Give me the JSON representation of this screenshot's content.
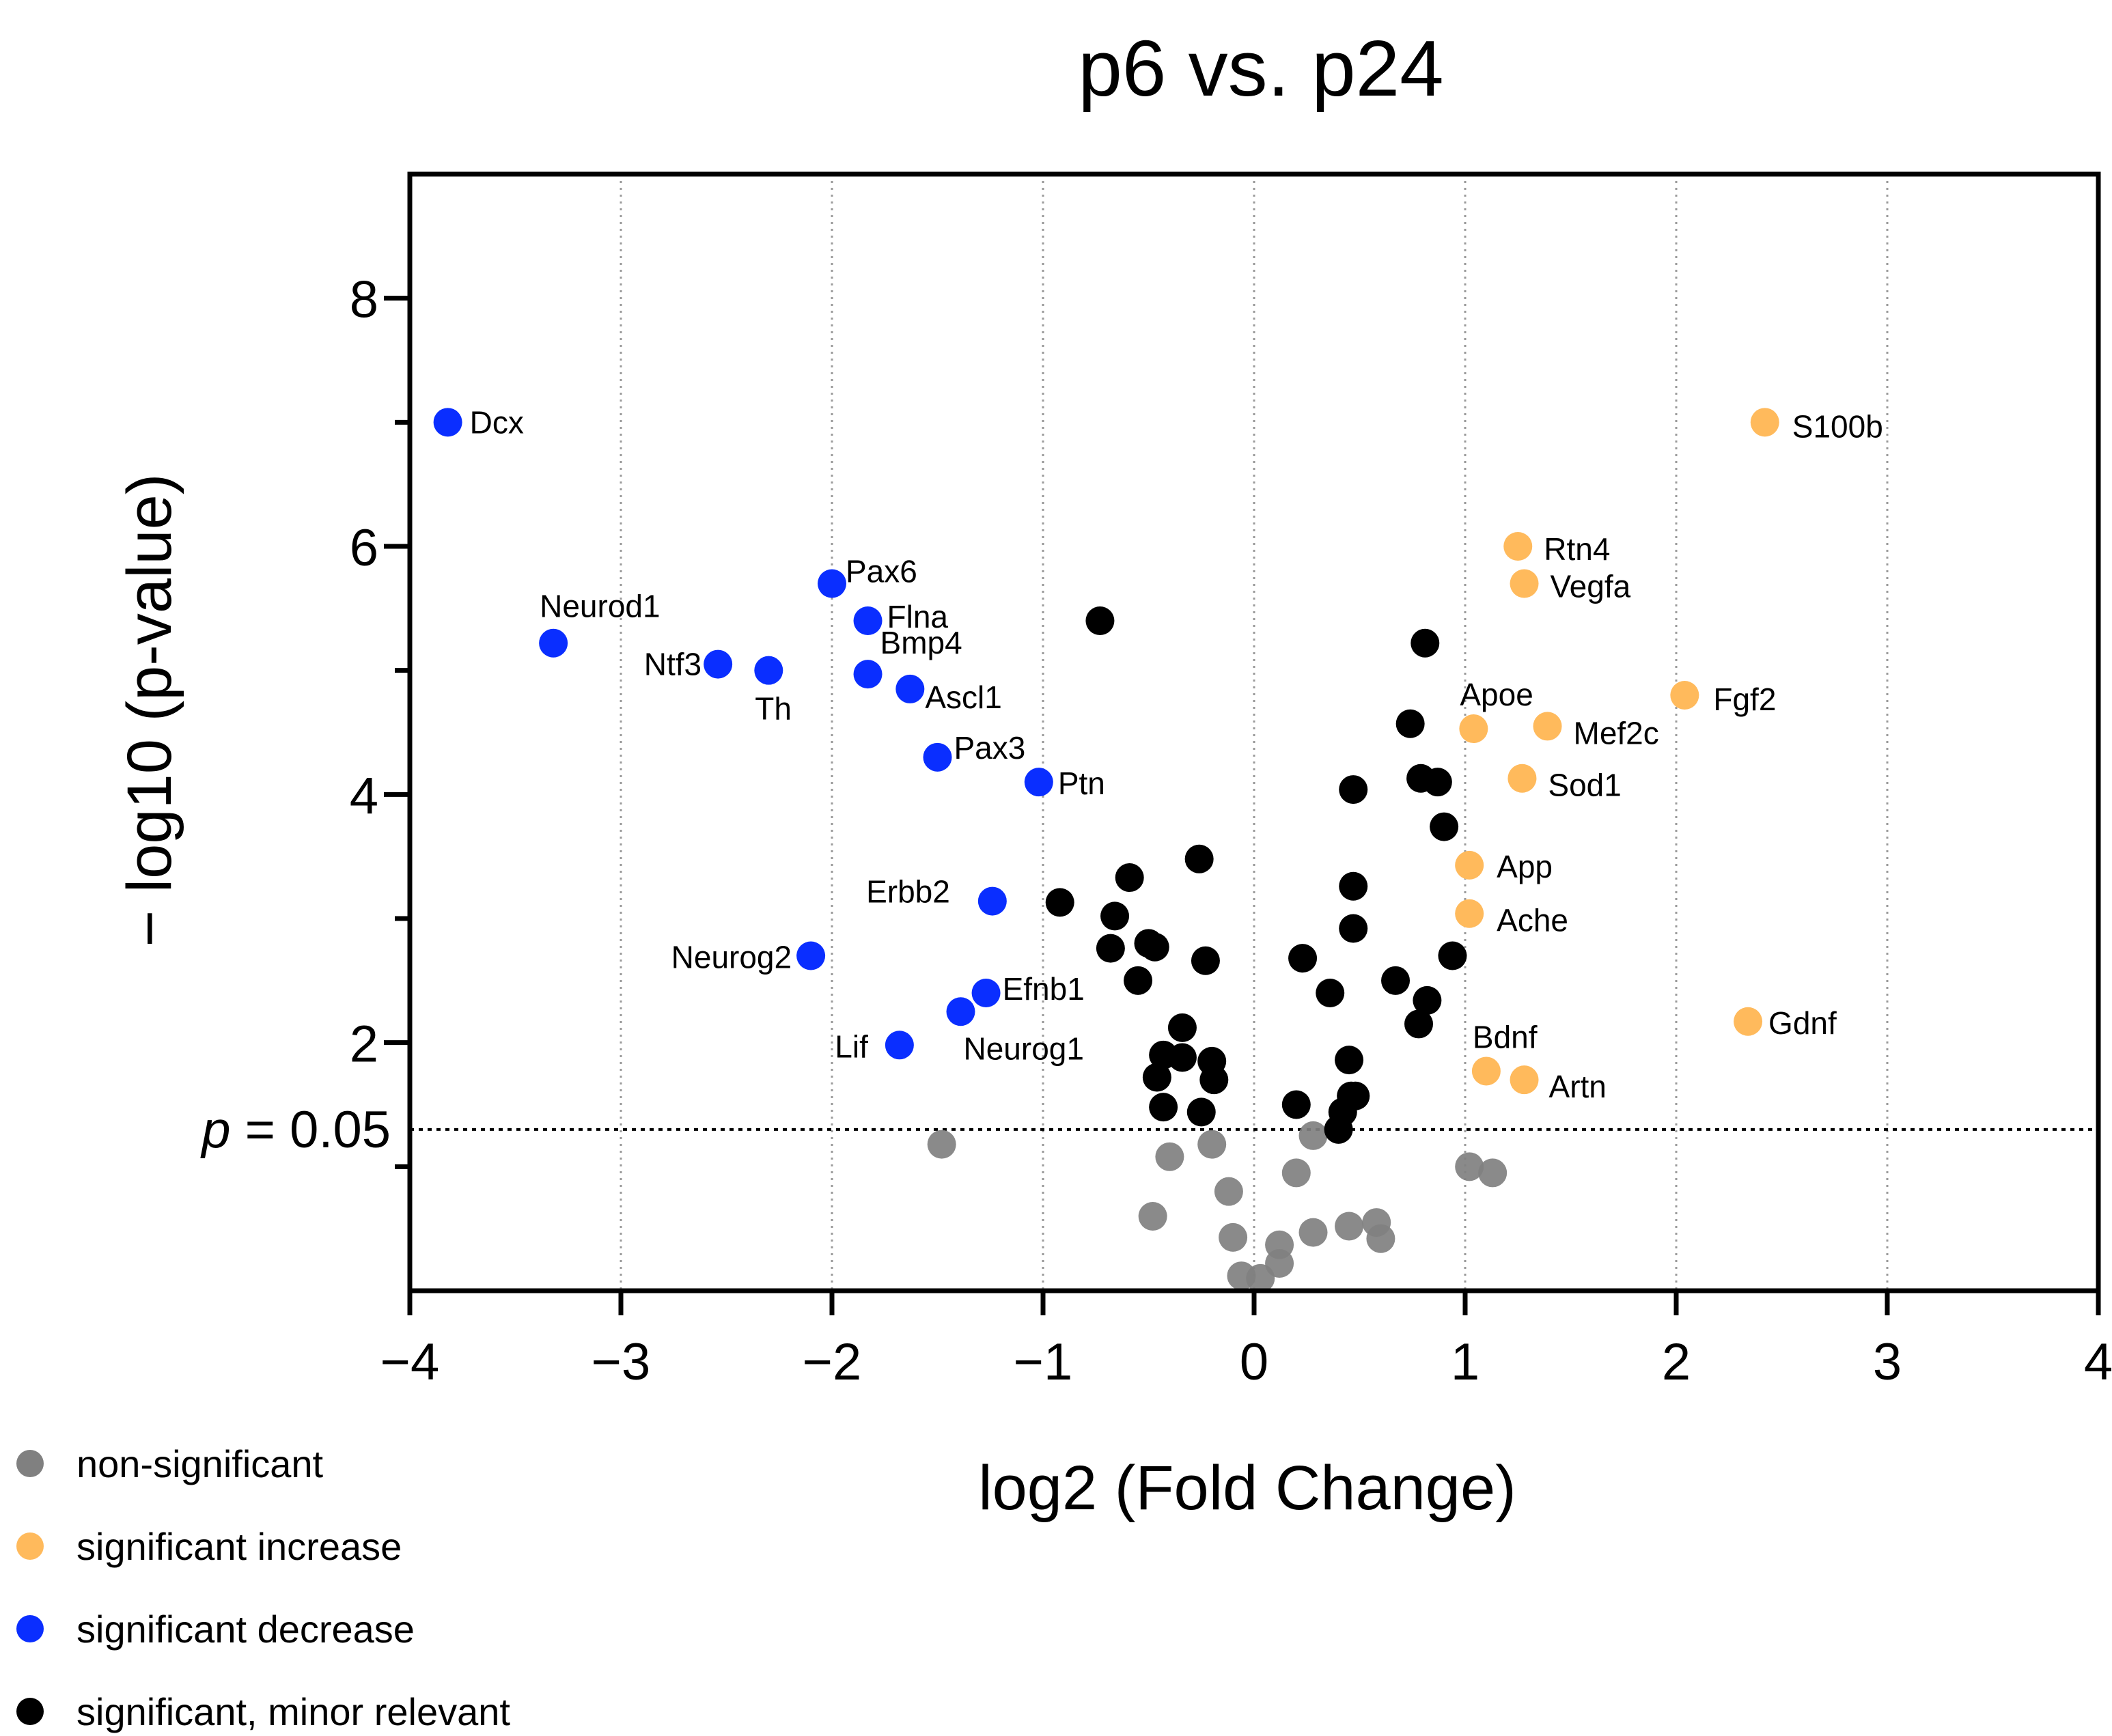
{
  "chart_data": {
    "type": "scatter",
    "title": "p6 vs. p24",
    "xlabel": "log2 (Fold Change)",
    "ylabel": "− log10 (p-value)",
    "xlim": [
      -4,
      4
    ],
    "ylim": [
      0,
      9
    ],
    "x_ticks": [
      -4,
      -3,
      -2,
      -1,
      0,
      1,
      2,
      3,
      4
    ],
    "x_tick_labels": [
      "−4",
      "−3",
      "−2",
      "−1",
      "0",
      "1",
      "2",
      "3",
      "4"
    ],
    "y_ticks": [
      2,
      4,
      6,
      8
    ],
    "y_tick_labels": [
      "2",
      "4",
      "6",
      "8"
    ],
    "grid": "vertical-dotted",
    "threshold": {
      "y": 1.3,
      "label_italic": "p",
      "label_rest": " = 0.05"
    },
    "legend_position": "bottom-left",
    "series": [
      {
        "name": "non-significant",
        "color": "#808080",
        "points": [
          {
            "x": -1.48,
            "y": 1.18
          },
          {
            "x": -0.4,
            "y": 1.08
          },
          {
            "x": -0.2,
            "y": 1.18
          },
          {
            "x": 0.28,
            "y": 1.25
          },
          {
            "x": 0.2,
            "y": 0.95
          },
          {
            "x": -0.12,
            "y": 0.8
          },
          {
            "x": -0.48,
            "y": 0.6
          },
          {
            "x": -0.1,
            "y": 0.43
          },
          {
            "x": 0.28,
            "y": 0.47
          },
          {
            "x": 0.12,
            "y": 0.37
          },
          {
            "x": 0.12,
            "y": 0.22
          },
          {
            "x": 0.45,
            "y": 0.52
          },
          {
            "x": 0.58,
            "y": 0.55
          },
          {
            "x": 0.6,
            "y": 0.42
          },
          {
            "x": -0.06,
            "y": 0.12
          },
          {
            "x": 0.03,
            "y": 0.1
          },
          {
            "x": 1.02,
            "y": 1.0
          },
          {
            "x": 1.13,
            "y": 0.95
          }
        ]
      },
      {
        "name": "significant increase",
        "color": "#FFBA5C",
        "points": [
          {
            "x": 2.42,
            "y": 7.0,
            "label": "S100b"
          },
          {
            "x": 1.25,
            "y": 6.0,
            "label": "Rtn4"
          },
          {
            "x": 1.28,
            "y": 5.7,
            "label": "Vegfa"
          },
          {
            "x": 2.04,
            "y": 4.8,
            "label": "Fgf2"
          },
          {
            "x": 1.04,
            "y": 4.53,
            "label": "Apoe"
          },
          {
            "x": 1.39,
            "y": 4.55,
            "label": "Mef2c"
          },
          {
            "x": 1.27,
            "y": 4.13,
            "label": "Sod1"
          },
          {
            "x": 1.02,
            "y": 3.43,
            "label": "App"
          },
          {
            "x": 1.02,
            "y": 3.04,
            "label": "Ache"
          },
          {
            "x": 2.34,
            "y": 2.17,
            "label": "Gdnf"
          },
          {
            "x": 1.1,
            "y": 1.77,
            "label": "Bdnf"
          },
          {
            "x": 1.28,
            "y": 1.7,
            "label": "Artn"
          }
        ]
      },
      {
        "name": "significant decrease",
        "color": "#0A2EFF",
        "points": [
          {
            "x": -3.82,
            "y": 7.0,
            "label": "Dcx"
          },
          {
            "x": -3.32,
            "y": 5.22,
            "label": "Neurod1"
          },
          {
            "x": -2.54,
            "y": 5.05,
            "label": "Ntf3"
          },
          {
            "x": -2.3,
            "y": 5.0,
            "label": "Th"
          },
          {
            "x": -2.0,
            "y": 5.7,
            "label": "Pax6"
          },
          {
            "x": -1.83,
            "y": 5.4,
            "label": "Flna"
          },
          {
            "x": -1.83,
            "y": 4.97,
            "label": "Bmp4"
          },
          {
            "x": -1.63,
            "y": 4.85,
            "label": "Ascl1"
          },
          {
            "x": -1.5,
            "y": 4.3,
            "label": "Pax3"
          },
          {
            "x": -1.02,
            "y": 4.1,
            "label": "Ptn"
          },
          {
            "x": -1.24,
            "y": 3.14,
            "label": "Erbb2"
          },
          {
            "x": -2.1,
            "y": 2.7,
            "label": "Neurog2"
          },
          {
            "x": -1.27,
            "y": 2.4,
            "label": "Efnb1"
          },
          {
            "x": -1.39,
            "y": 2.25,
            "label": "Neurog1"
          },
          {
            "x": -1.68,
            "y": 1.98,
            "label": "Lif"
          }
        ]
      },
      {
        "name": "significant, minor relevant",
        "color": "#000000",
        "points": [
          {
            "x": -0.73,
            "y": 5.4
          },
          {
            "x": 0.81,
            "y": 5.22
          },
          {
            "x": 0.74,
            "y": 4.57
          },
          {
            "x": 0.47,
            "y": 4.04
          },
          {
            "x": 0.79,
            "y": 4.13
          },
          {
            "x": 0.87,
            "y": 4.1
          },
          {
            "x": 0.9,
            "y": 3.74
          },
          {
            "x": -0.26,
            "y": 3.48
          },
          {
            "x": -0.59,
            "y": 3.33
          },
          {
            "x": -0.92,
            "y": 3.13
          },
          {
            "x": -0.66,
            "y": 3.02
          },
          {
            "x": -0.5,
            "y": 2.8
          },
          {
            "x": -0.47,
            "y": 2.77
          },
          {
            "x": -0.68,
            "y": 2.76
          },
          {
            "x": -0.23,
            "y": 2.66
          },
          {
            "x": -0.55,
            "y": 2.5
          },
          {
            "x": 0.47,
            "y": 3.26
          },
          {
            "x": 0.47,
            "y": 2.92
          },
          {
            "x": 0.23,
            "y": 2.68
          },
          {
            "x": 0.94,
            "y": 2.7
          },
          {
            "x": 0.67,
            "y": 2.5
          },
          {
            "x": 0.36,
            "y": 2.4
          },
          {
            "x": 0.82,
            "y": 2.34
          },
          {
            "x": 0.78,
            "y": 2.15
          },
          {
            "x": -0.34,
            "y": 2.12
          },
          {
            "x": -0.43,
            "y": 1.9
          },
          {
            "x": -0.34,
            "y": 1.88
          },
          {
            "x": -0.2,
            "y": 1.85
          },
          {
            "x": -0.46,
            "y": 1.72
          },
          {
            "x": -0.19,
            "y": 1.7
          },
          {
            "x": -0.43,
            "y": 1.48
          },
          {
            "x": -0.25,
            "y": 1.44
          },
          {
            "x": 0.45,
            "y": 1.86
          },
          {
            "x": 0.46,
            "y": 1.57
          },
          {
            "x": 0.48,
            "y": 1.57
          },
          {
            "x": 0.42,
            "y": 1.44
          },
          {
            "x": 0.2,
            "y": 1.5
          },
          {
            "x": 0.4,
            "y": 1.3
          }
        ]
      }
    ]
  }
}
